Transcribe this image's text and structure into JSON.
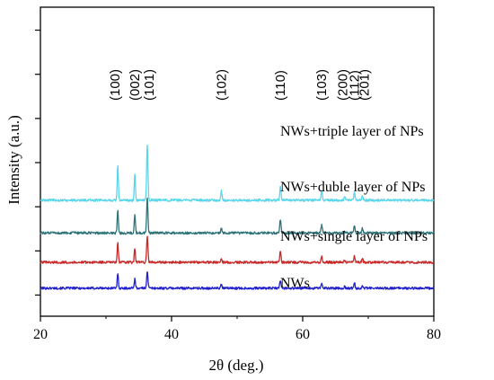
{
  "chart_data": {
    "type": "line",
    "title": "",
    "xlabel": "2θ (deg.)",
    "ylabel": "Intensity (a.u.)",
    "xlim": [
      20,
      80
    ],
    "xticks": [
      "20",
      "40",
      "60",
      "80"
    ],
    "y_ticks_labeled": false,
    "grid": false,
    "legend": "inline-labels",
    "peaks": [
      {
        "label": "(100)",
        "two_theta": 31.8
      },
      {
        "label": "(002)",
        "two_theta": 34.4
      },
      {
        "label": "(101)",
        "two_theta": 36.3
      },
      {
        "label": "(102)",
        "two_theta": 47.6
      },
      {
        "label": "(110)",
        "two_theta": 56.6
      },
      {
        "label": "(103)",
        "two_theta": 62.9
      },
      {
        "label": "(200)",
        "two_theta": 66.4
      },
      {
        "label": "(112)",
        "two_theta": 67.9
      },
      {
        "label": "(201)",
        "two_theta": 69.1
      }
    ],
    "series": [
      {
        "name": "NWs",
        "color": "#1f1fcc",
        "baseline": 1.0,
        "peak_heights": [
          0.9,
          0.6,
          1.0,
          0.2,
          0.45,
          0.3,
          0.08,
          0.3,
          0.15
        ]
      },
      {
        "name": "NWs+single layer of NPs",
        "color": "#c82a2a",
        "baseline": 2.5,
        "peak_heights": [
          1.2,
          0.85,
          1.55,
          0.25,
          0.65,
          0.35,
          0.1,
          0.35,
          0.2
        ]
      },
      {
        "name": "NWs+duble layer of NPs",
        "color": "#2e7378",
        "baseline": 4.2,
        "peak_heights": [
          1.35,
          1.05,
          2.05,
          0.3,
          0.75,
          0.45,
          0.1,
          0.45,
          0.25
        ]
      },
      {
        "name": "NWs+triple layer of NPs",
        "color": "#5ad6ea",
        "baseline": 6.1,
        "peak_heights": [
          2.05,
          1.55,
          3.2,
          0.55,
          0.8,
          0.6,
          0.15,
          0.45,
          0.25
        ]
      }
    ]
  }
}
